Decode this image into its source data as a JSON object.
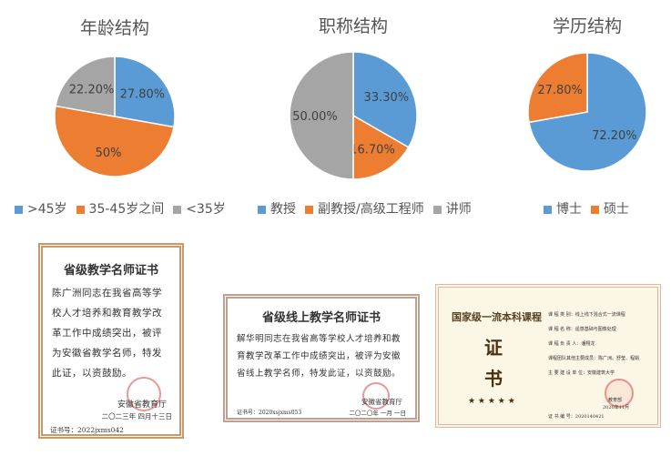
{
  "chart_data": [
    {
      "type": "pie",
      "title": "年龄结构",
      "categories": [
        ">45岁",
        "35-45岁之间",
        "<35岁"
      ],
      "values": [
        27.8,
        50,
        22.2
      ],
      "labels": [
        "27.80%",
        "50%",
        "22.20%"
      ],
      "colors": [
        "#5b9bd5",
        "#ed7d31",
        "#a5a5a5"
      ],
      "legend": "bottom"
    },
    {
      "type": "pie",
      "title": "职称结构",
      "categories": [
        "教授",
        "副教授/高级工程师",
        "讲师"
      ],
      "values": [
        33.3,
        16.7,
        50
      ],
      "labels": [
        "33.30%",
        "16.70%",
        "50.00%"
      ],
      "colors": [
        "#5b9bd5",
        "#ed7d31",
        "#a5a5a5"
      ],
      "legend": "bottom"
    },
    {
      "type": "pie",
      "title": "学历结构",
      "categories": [
        "博士",
        "硕士"
      ],
      "values": [
        72.2,
        27.8
      ],
      "labels": [
        "72.20%",
        "27.80%"
      ],
      "colors": [
        "#5b9bd5",
        "#ed7d31"
      ],
      "legend": "bottom"
    }
  ],
  "certificates": [
    {
      "title": "省级教学名师证书",
      "body": "陈广洲同志在我省高等学校人才培养和教育教学改革工作中成绩突出，被评为安徽省教学名师，特发此证，以资鼓励。",
      "issuer": "安徽省教育厅",
      "date": "二〇二三年 四月十三日",
      "number": "证书号：2022jxms042"
    },
    {
      "title": "省级线上教学名师证书",
      "body": "解华明同志在我省高等学校人才培养和教育教学改革工作中成绩突出，被评为安徽省线上教学名师，特发此证，以资鼓励。",
      "issuer": "安徽省教育厅",
      "date": "二〇二〇年 一月 一日",
      "number": "证书号：2020xsjxms053"
    },
    {
      "title": "国家级一流本科课程",
      "big1": "证",
      "big2": "书",
      "stars": "★ ★ ★ ★ ★",
      "fields": [
        "课 程 类 别：线上线下混合式一流课程",
        "课 程 名 称：遥感基础与图像处理",
        "课 程 负 责 人：潘翔龙",
        "课程团队其他主要成员：陈广洲、舒莹、程娟",
        "主 要 建 设 单 位：安徽建筑大学"
      ],
      "issuer": "教育部",
      "date": "2020年11月",
      "number": "证 书 编 号：2020140421"
    }
  ]
}
